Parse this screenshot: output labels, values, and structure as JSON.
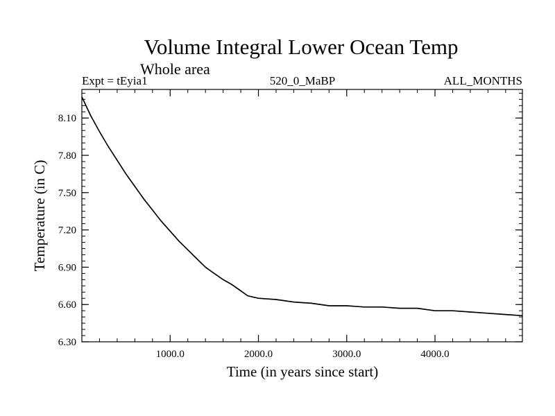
{
  "chart_data": {
    "type": "line",
    "title": "Volume Integral Lower Ocean Temp",
    "subtitle": "Whole area",
    "header_left": "Expt = tEyia1",
    "header_center": "520_0_MaBP",
    "header_right": "ALL_MONTHS",
    "xlabel": "Time (in years since start)",
    "ylabel": "Temperature (in C)",
    "xlim": [
      0,
      4990
    ],
    "ylim": [
      6.3,
      8.33
    ],
    "x_ticks": [
      1000,
      2000,
      3000,
      4000
    ],
    "x_tick_labels": [
      "1000.0",
      "2000.0",
      "3000.0",
      "4000.0"
    ],
    "y_ticks": [
      6.3,
      6.6,
      6.9,
      7.2,
      7.5,
      7.8,
      8.1
    ],
    "y_tick_labels": [
      "6.30",
      "6.60",
      "6.90",
      "7.20",
      "7.50",
      "7.80",
      "8.10"
    ],
    "grid": false,
    "series": [
      {
        "name": "tEyia1",
        "x": [
          0,
          100,
          200,
          300,
          400,
          500,
          600,
          700,
          800,
          900,
          1000,
          1100,
          1200,
          1300,
          1400,
          1500,
          1600,
          1700,
          1800,
          1880,
          2000,
          2200,
          2400,
          2600,
          2800,
          3000,
          3200,
          3400,
          3600,
          3800,
          4000,
          4200,
          4400,
          4600,
          4800,
          4990
        ],
        "y": [
          8.27,
          8.12,
          7.99,
          7.87,
          7.76,
          7.65,
          7.55,
          7.45,
          7.36,
          7.27,
          7.19,
          7.11,
          7.04,
          6.97,
          6.9,
          6.85,
          6.8,
          6.76,
          6.71,
          6.67,
          6.65,
          6.64,
          6.62,
          6.61,
          6.59,
          6.59,
          6.58,
          6.58,
          6.57,
          6.57,
          6.55,
          6.55,
          6.54,
          6.53,
          6.52,
          6.51
        ]
      }
    ]
  }
}
